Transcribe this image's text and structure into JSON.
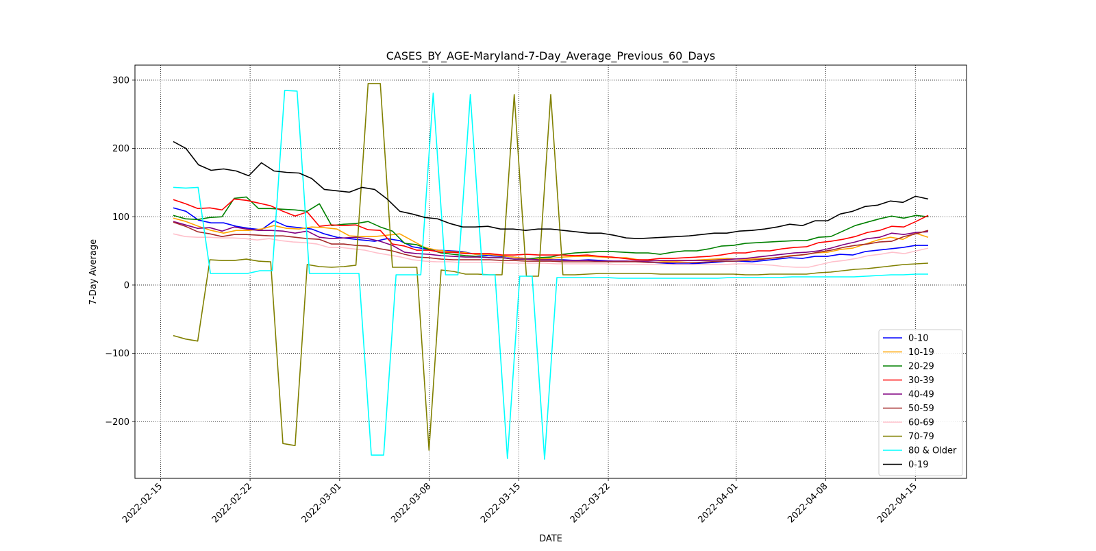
{
  "chart_data": {
    "type": "line",
    "title": "CASES_BY_AGE-Maryland-7-Day_Average_Previous_60_Days",
    "xlabel": "DATE",
    "ylabel": "7-Day Average",
    "x_start": "2022-02-16",
    "x_end": "2022-04-16",
    "xlim": [
      "2022-02-13",
      "2022-04-19"
    ],
    "ylim": [
      -283,
      322
    ],
    "grid": true,
    "legend_position": "lower-right",
    "x_ticks": [
      "2022-02-15",
      "2022-02-22",
      "2022-03-01",
      "2022-03-08",
      "2022-03-15",
      "2022-03-22",
      "2022-04-01",
      "2022-04-08",
      "2022-04-15"
    ],
    "y_ticks": [
      300,
      200,
      100,
      0,
      -100,
      -200
    ],
    "y_tick_labels": [
      "300",
      "200",
      "100",
      "0",
      "−100",
      "−200"
    ],
    "series": [
      {
        "name": "0-10",
        "color": "#0000ff",
        "values": [
          113,
          108,
          95,
          91,
          91,
          86,
          83,
          81,
          94,
          86,
          84,
          82,
          75,
          70,
          68,
          66,
          64,
          68,
          65,
          56,
          53,
          51,
          50,
          49,
          45,
          43,
          42,
          41,
          39,
          37,
          37,
          37,
          36,
          37,
          36,
          35,
          35,
          34,
          33,
          32,
          31,
          31,
          32,
          33,
          35,
          35,
          34,
          36,
          38,
          40,
          39,
          42,
          42,
          45,
          44,
          49,
          51,
          53,
          55,
          58,
          58
        ]
      },
      {
        "name": "10-19",
        "color": "#ffa500",
        "values": [
          98,
          93,
          86,
          80,
          76,
          80,
          80,
          82,
          87,
          83,
          82,
          85,
          84,
          82,
          72,
          71,
          71,
          73,
          75,
          65,
          55,
          51,
          49,
          48,
          45,
          45,
          43,
          41,
          39,
          38,
          39,
          41,
          42,
          42,
          41,
          40,
          40,
          37,
          36,
          35,
          35,
          36,
          37,
          38,
          39,
          38,
          38,
          39,
          40,
          43,
          44,
          47,
          48,
          52,
          54,
          60,
          66,
          70,
          67,
          76,
          70
        ]
      },
      {
        "name": "20-29",
        "color": "#008000",
        "values": [
          102,
          97,
          96,
          99,
          100,
          127,
          129,
          112,
          112,
          111,
          110,
          108,
          119,
          87,
          89,
          90,
          93,
          85,
          79,
          61,
          59,
          52,
          47,
          45,
          43,
          42,
          40,
          40,
          38,
          38,
          40,
          41,
          45,
          47,
          48,
          49,
          49,
          48,
          47,
          47,
          45,
          48,
          50,
          50,
          53,
          57,
          58,
          61,
          62,
          63,
          64,
          65,
          65,
          70,
          71,
          79,
          87,
          92,
          97,
          101,
          98,
          102,
          100
        ]
      },
      {
        "name": "30-39",
        "color": "#ff0000",
        "values": [
          125,
          119,
          112,
          113,
          110,
          126,
          124,
          120,
          116,
          108,
          101,
          107,
          86,
          88,
          87,
          88,
          81,
          80,
          60,
          57,
          51,
          51,
          48,
          48,
          46,
          46,
          46,
          44,
          44,
          45,
          44,
          44,
          44,
          43,
          44,
          42,
          41,
          39,
          37,
          37,
          39,
          39,
          40,
          41,
          42,
          44,
          47,
          47,
          50,
          50,
          53,
          55,
          56,
          62,
          64,
          67,
          71,
          77,
          80,
          86,
          85,
          93,
          102
        ]
      },
      {
        "name": "40-49",
        "color": "#800080",
        "values": [
          93,
          88,
          83,
          84,
          79,
          85,
          82,
          80,
          80,
          79,
          76,
          79,
          70,
          68,
          69,
          70,
          68,
          64,
          58,
          48,
          46,
          45,
          43,
          42,
          41,
          41,
          40,
          40,
          38,
          38,
          37,
          37,
          36,
          36,
          36,
          35,
          35,
          35,
          35,
          35,
          36,
          36,
          36,
          36,
          36,
          37,
          38,
          39,
          41,
          43,
          45,
          47,
          48,
          50,
          54,
          59,
          63,
          68,
          70,
          76,
          74,
          77,
          78
        ]
      },
      {
        "name": "50-59",
        "color": "#a52a2a",
        "values": [
          92,
          86,
          78,
          75,
          71,
          74,
          74,
          73,
          72,
          72,
          70,
          68,
          67,
          60,
          60,
          58,
          57,
          53,
          50,
          45,
          41,
          40,
          38,
          37,
          37,
          37,
          37,
          36,
          36,
          35,
          35,
          35,
          34,
          34,
          34,
          34,
          34,
          34,
          34,
          33,
          33,
          33,
          33,
          33,
          34,
          35,
          35,
          36,
          37,
          39,
          41,
          43,
          45,
          48,
          51,
          55,
          58,
          60,
          63,
          64,
          71,
          75,
          80
        ]
      },
      {
        "name": "60-69",
        "color": "#ffc0cb",
        "values": [
          75,
          71,
          70,
          70,
          69,
          69,
          68,
          66,
          68,
          65,
          63,
          62,
          60,
          55,
          55,
          53,
          51,
          47,
          44,
          41,
          37,
          35,
          34,
          34,
          33,
          33,
          33,
          33,
          32,
          32,
          32,
          32,
          31,
          31,
          31,
          31,
          31,
          30,
          30,
          30,
          30,
          30,
          30,
          30,
          30,
          30,
          30,
          31,
          31,
          30,
          29,
          27,
          26,
          26,
          30,
          34,
          36,
          39,
          43,
          45,
          48,
          46,
          50,
          54
        ]
      },
      {
        "name": "70-79",
        "color": "#808000",
        "values": [
          -74,
          -79,
          -82,
          37,
          36,
          36,
          38,
          35,
          34,
          -232,
          -235,
          30,
          27,
          26,
          27,
          29,
          295,
          295,
          26,
          26,
          26,
          -242,
          22,
          20,
          16,
          16,
          15,
          15,
          279,
          13,
          13,
          279,
          15,
          15,
          16,
          17,
          17,
          17,
          17,
          17,
          16,
          16,
          16,
          16,
          16,
          16,
          16,
          15,
          15,
          16,
          16,
          16,
          16,
          18,
          19,
          21,
          23,
          24,
          26,
          28,
          30,
          31,
          32
        ]
      },
      {
        "name": "80 & Older",
        "color": "#00ffff",
        "values": [
          143,
          142,
          143,
          17,
          17,
          17,
          17,
          21,
          21,
          285,
          284,
          17,
          17,
          17,
          17,
          17,
          -249,
          -249,
          15,
          15,
          15,
          281,
          15,
          15,
          279,
          15,
          15,
          -254,
          13,
          13,
          -255,
          11,
          11,
          11,
          11,
          11,
          10,
          10,
          10,
          10,
          10,
          10,
          10,
          10,
          10,
          11,
          11,
          11,
          11,
          11,
          12,
          12,
          12,
          12,
          12,
          12,
          13,
          14,
          15,
          15,
          16,
          16
        ]
      },
      {
        "name": "0-19",
        "color": "#000000",
        "values": [
          210,
          200,
          176,
          168,
          170,
          167,
          160,
          179,
          167,
          165,
          164,
          156,
          140,
          138,
          136,
          143,
          140,
          126,
          108,
          104,
          99,
          97,
          90,
          85,
          85,
          86,
          82,
          82,
          80,
          82,
          82,
          80,
          78,
          76,
          76,
          73,
          69,
          68,
          69,
          70,
          71,
          72,
          74,
          76,
          76,
          79,
          80,
          82,
          85,
          89,
          87,
          94,
          94,
          104,
          108,
          115,
          117,
          123,
          121,
          130,
          126
        ]
      }
    ]
  }
}
